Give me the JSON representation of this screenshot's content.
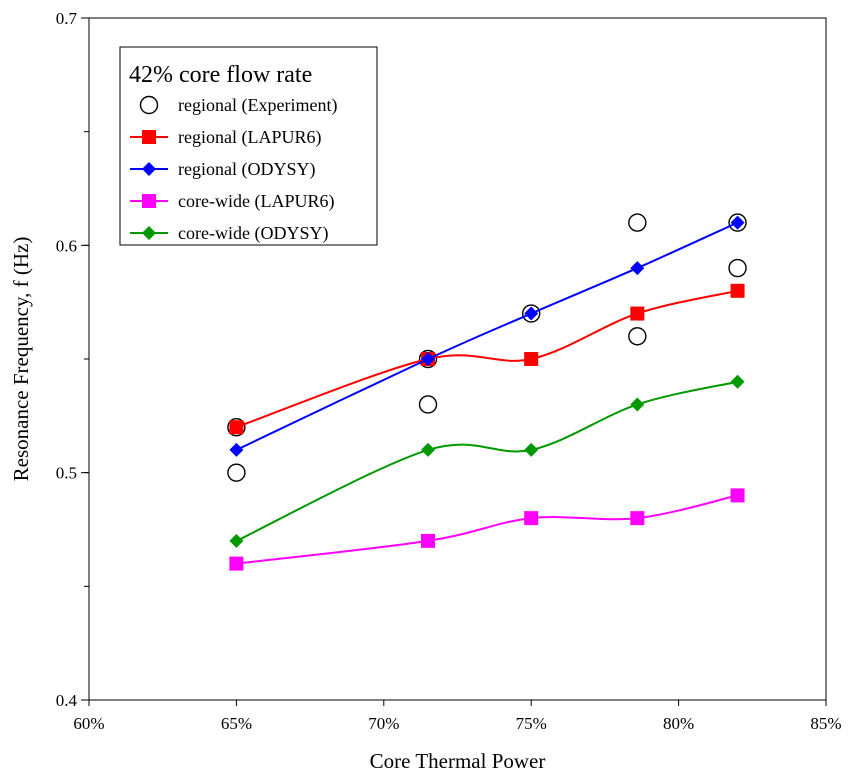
{
  "chart_data": {
    "type": "line",
    "xlabel": "Core Thermal Power",
    "ylabel": "Resonance Frequency, f (Hz)",
    "xlim": [
      60,
      85
    ],
    "ylim": [
      0.4,
      0.7
    ],
    "x_ticks": [
      "60%",
      "65%",
      "70%",
      "75%",
      "80%",
      "85%"
    ],
    "y_ticks": [
      "0.4",
      "0.5",
      "0.6",
      "0.7"
    ],
    "x_tick_values": [
      60,
      65,
      70,
      75,
      80,
      85
    ],
    "y_tick_values": [
      0.4,
      0.5,
      0.6,
      0.7
    ],
    "grid": false,
    "legend": {
      "title": "42% core flow rate",
      "placement": "top-left"
    },
    "series": [
      {
        "name": "regional (Experiment)",
        "marker": "open-circle",
        "line": false,
        "color": "#000000",
        "points": [
          [
            65,
            0.5
          ],
          [
            65,
            0.52
          ],
          [
            71.5,
            0.53
          ],
          [
            71.5,
            0.55
          ],
          [
            75,
            0.57
          ],
          [
            78.6,
            0.56
          ],
          [
            78.6,
            0.61
          ],
          [
            82,
            0.59
          ],
          [
            82,
            0.61
          ]
        ]
      },
      {
        "name": "regional (LAPUR6)",
        "marker": "square",
        "line": true,
        "color": "#ff0000",
        "points": [
          [
            65,
            0.52
          ],
          [
            71.5,
            0.55
          ],
          [
            75,
            0.55
          ],
          [
            78.6,
            0.57
          ],
          [
            82,
            0.58
          ]
        ]
      },
      {
        "name": "regional (ODYSY)",
        "marker": "diamond",
        "line": true,
        "color": "#0000ff",
        "points": [
          [
            65,
            0.51
          ],
          [
            71.5,
            0.55
          ],
          [
            75,
            0.57
          ],
          [
            78.6,
            0.59
          ],
          [
            82,
            0.61
          ]
        ]
      },
      {
        "name": "core-wide (LAPUR6)",
        "marker": "square",
        "line": true,
        "color": "#ff00ff",
        "points": [
          [
            65,
            0.46
          ],
          [
            71.5,
            0.47
          ],
          [
            75,
            0.48
          ],
          [
            78.6,
            0.48
          ],
          [
            82,
            0.49
          ]
        ]
      },
      {
        "name": "core-wide (ODYSY)",
        "marker": "diamond",
        "line": true,
        "color": "#009900",
        "points": [
          [
            65,
            0.47
          ],
          [
            71.5,
            0.51
          ],
          [
            75,
            0.51
          ],
          [
            78.6,
            0.53
          ],
          [
            82,
            0.54
          ]
        ]
      }
    ]
  }
}
